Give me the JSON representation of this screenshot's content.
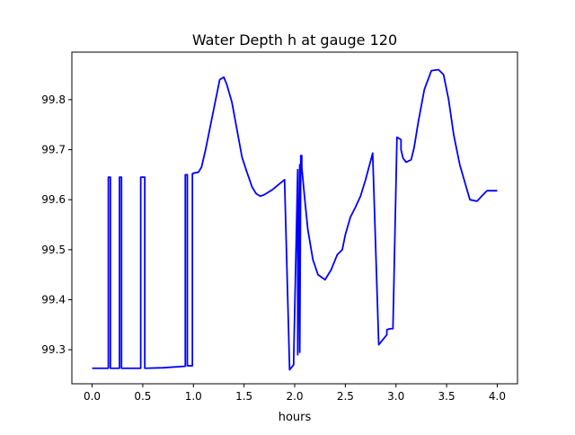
{
  "chart_data": {
    "type": "line",
    "title": "Water Depth h at gauge 120",
    "xlabel": "hours",
    "ylabel": "",
    "xlim": [
      -0.2,
      4.2
    ],
    "ylim": [
      99.232,
      99.895
    ],
    "xticks": [
      0.0,
      0.5,
      1.0,
      1.5,
      2.0,
      2.5,
      3.0,
      3.5,
      4.0
    ],
    "xtick_labels": [
      "0.0",
      "0.5",
      "1.0",
      "1.5",
      "2.0",
      "2.5",
      "3.0",
      "3.5",
      "4.0"
    ],
    "yticks": [
      99.3,
      99.4,
      99.5,
      99.6,
      99.7,
      99.8
    ],
    "ytick_labels": [
      "99.3",
      "99.4",
      "99.5",
      "99.6",
      "99.7",
      "99.8"
    ],
    "grid": false,
    "series": [
      {
        "color": "#0000ff",
        "x": [
          0.0,
          0.16,
          0.16,
          0.18,
          0.18,
          0.27,
          0.27,
          0.29,
          0.29,
          0.48,
          0.48,
          0.52,
          0.52,
          0.7,
          0.92,
          0.92,
          0.94,
          0.94,
          0.99,
          0.99,
          1.0,
          1.0,
          1.05,
          1.08,
          1.12,
          1.2,
          1.26,
          1.3,
          1.33,
          1.38,
          1.43,
          1.48,
          1.52,
          1.58,
          1.62,
          1.66,
          1.7,
          1.78,
          1.84,
          1.9,
          1.95,
          1.99,
          1.99,
          2.03,
          2.03,
          2.05,
          2.05,
          2.06,
          2.06,
          2.07,
          2.07,
          2.1,
          2.13,
          2.18,
          2.23,
          2.3,
          2.36,
          2.42,
          2.47,
          2.5,
          2.55,
          2.6,
          2.65,
          2.7,
          2.77,
          2.83,
          2.91,
          2.91,
          2.94,
          2.97,
          3.01,
          3.05,
          3.05,
          3.07,
          3.1,
          3.15,
          3.18,
          3.22,
          3.28,
          3.35,
          3.42,
          3.47,
          3.52,
          3.57,
          3.63,
          3.68,
          3.73,
          3.8,
          3.86,
          3.9,
          3.95,
          4.0
        ],
        "y": [
          99.263,
          99.263,
          99.645,
          99.645,
          99.263,
          99.263,
          99.645,
          99.645,
          99.263,
          99.263,
          99.645,
          99.645,
          99.263,
          99.264,
          99.267,
          99.65,
          99.65,
          99.268,
          99.268,
          99.652,
          99.652,
          99.653,
          99.655,
          99.665,
          99.7,
          99.78,
          99.84,
          99.845,
          99.83,
          99.795,
          99.74,
          99.685,
          99.66,
          99.625,
          99.612,
          99.607,
          99.61,
          99.62,
          99.63,
          99.64,
          99.26,
          99.27,
          99.28,
          99.66,
          99.29,
          99.67,
          99.295,
          99.675,
          99.688,
          99.688,
          99.665,
          99.6,
          99.54,
          99.48,
          99.45,
          99.44,
          99.46,
          99.49,
          99.5,
          99.53,
          99.565,
          99.585,
          99.607,
          99.64,
          99.693,
          99.31,
          99.33,
          99.34,
          99.342,
          99.342,
          99.725,
          99.72,
          99.7,
          99.683,
          99.675,
          99.68,
          99.705,
          99.755,
          99.82,
          99.858,
          99.86,
          99.85,
          99.8,
          99.73,
          99.67,
          99.635,
          99.6,
          99.597,
          99.61,
          99.618,
          99.618,
          99.618
        ]
      }
    ]
  }
}
